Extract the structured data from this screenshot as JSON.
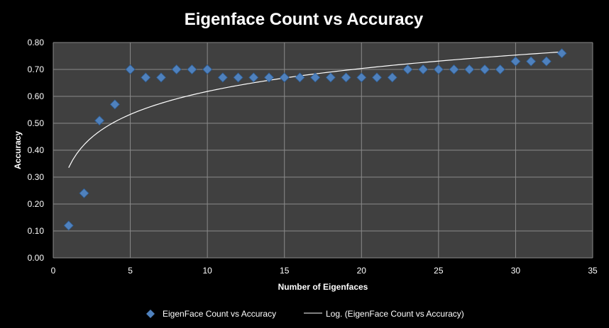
{
  "chart_data": {
    "type": "scatter",
    "title": "Eigenface Count vs Accuracy",
    "xlabel": "Number of Eigenfaces",
    "ylabel": "Accuracy",
    "xlim": [
      0,
      35
    ],
    "ylim": [
      0,
      0.8
    ],
    "x_ticks": [
      "0",
      "5",
      "10",
      "15",
      "20",
      "25",
      "30",
      "35"
    ],
    "y_ticks": [
      "0.00",
      "0.10",
      "0.20",
      "0.30",
      "0.40",
      "0.50",
      "0.60",
      "0.70",
      "0.80"
    ],
    "grid": true,
    "legend_position": "bottom",
    "series": [
      {
        "name": "EigenFace Count vs Accuracy",
        "marker": "diamond",
        "color": "#4f81bd",
        "x": [
          1,
          2,
          3,
          4,
          5,
          6,
          7,
          8,
          9,
          10,
          11,
          12,
          13,
          14,
          15,
          16,
          17,
          18,
          19,
          20,
          21,
          22,
          23,
          24,
          25,
          26,
          27,
          28,
          29,
          30,
          31,
          32,
          33
        ],
        "y": [
          0.12,
          0.24,
          0.51,
          0.57,
          0.7,
          0.67,
          0.67,
          0.7,
          0.7,
          0.7,
          0.67,
          0.67,
          0.67,
          0.67,
          0.67,
          0.67,
          0.67,
          0.67,
          0.67,
          0.67,
          0.67,
          0.67,
          0.7,
          0.7,
          0.7,
          0.7,
          0.7,
          0.7,
          0.7,
          0.73,
          0.73,
          0.73,
          0.76
        ]
      }
    ],
    "trendline": {
      "name": "Log. (EigenFace Count vs Accuracy)",
      "kind": "logarithmic",
      "color": "#ffffff",
      "x_range": [
        1,
        33
      ],
      "coefficients": {
        "a": 0.123,
        "b": 0.335
      }
    },
    "colors": {
      "background": "#000000",
      "plot_area": "#404040",
      "gridline": "#8a8a8a"
    }
  }
}
